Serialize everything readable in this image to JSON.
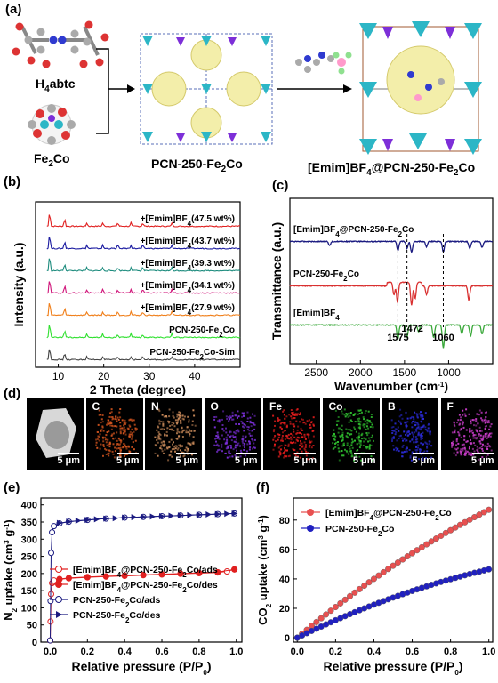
{
  "panels": {
    "a": {
      "label": "(a)",
      "linker": "H",
      "linker_sub": "4",
      "linker_rest": "abtc",
      "cluster": "Fe",
      "cluster_sub": "2",
      "cluster_rest": "Co",
      "mof": "PCN-250-Fe",
      "mof_sub": "2",
      "mof_rest": "Co",
      "composite": "[Emim]BF",
      "composite_sub": "4",
      "composite_rest": "@PCN-250-Fe",
      "composite_sub2": "2",
      "composite_rest2": "Co"
    },
    "b": {
      "label": "(b)"
    },
    "c": {
      "label": "(c)"
    },
    "d": {
      "label": "(d)",
      "tiles": [
        "",
        "C",
        "N",
        "O",
        "Fe",
        "Co",
        "B",
        "F"
      ],
      "scale": "5 μm",
      "colors": [
        "#888888",
        "#d2541e",
        "#c98a5a",
        "#7a2fd8",
        "#e51d1d",
        "#2fbf2f",
        "#2b2bd9",
        "#c83cc8"
      ]
    },
    "e": {
      "label": "(e)"
    },
    "f": {
      "label": "(f)"
    }
  },
  "chart_data": [
    {
      "id": "b",
      "type": "line",
      "xlabel": "2 Theta (degree)",
      "ylabel": "Intensity (a.u.)",
      "xticks": [
        "10",
        "20",
        "30",
        "40"
      ],
      "xlim": [
        5,
        50
      ],
      "series": [
        {
          "name": "+[Emim]BF4(47.5 wt%)",
          "color": "#e02020"
        },
        {
          "name": "+[Emim]BF4(43.7 wt%)",
          "color": "#1a1aa0"
        },
        {
          "name": "+[Emim]BF4(39.3 wt%)",
          "color": "#1e8c7e"
        },
        {
          "name": "+[Emim]BF4(34.1 wt%)",
          "color": "#d0157a"
        },
        {
          "name": "+[Emim]BF4(27.9 wt%)",
          "color": "#f07f1a"
        },
        {
          "name": "PCN-250-Fe2Co",
          "color": "#30e030"
        },
        {
          "name": "PCN-250-Fe2Co-Sim",
          "color": "#444444"
        }
      ],
      "labels": [
        {
          "pre": "+[Emim]BF",
          "sub": "4",
          "post": "(47.5 wt%)"
        },
        {
          "pre": "+[Emim]BF",
          "sub": "4",
          "post": "(43.7 wt%)"
        },
        {
          "pre": "+[Emim]BF",
          "sub": "4",
          "post": "(39.3 wt%)"
        },
        {
          "pre": "+[Emim]BF",
          "sub": "4",
          "post": "(34.1 wt%)"
        },
        {
          "pre": "+[Emim]BF",
          "sub": "4",
          "post": "(27.9 wt%)"
        },
        {
          "pre": "PCN-250-Fe",
          "sub": "2",
          "post": "Co"
        },
        {
          "pre": "PCN-250-Fe",
          "sub": "2",
          "post": "Co-Sim"
        }
      ],
      "peaks": [
        8.1,
        11.4,
        16.3,
        19.8,
        23.1,
        26.0,
        28.6,
        35.0
      ]
    },
    {
      "id": "c",
      "type": "line",
      "xlabel": "Wavenumber (cm",
      "xlabel_sup": "-1",
      "xlabel_end": ")",
      "ylabel": "Transmittance (a.u.)",
      "xticks": [
        "2500",
        "2000",
        "1500",
        "1000"
      ],
      "xlim": [
        2800,
        500
      ],
      "series": [
        {
          "name": "[Emim]BF4@PCN-250-Fe2Co",
          "color": "#1a1a80"
        },
        {
          "name": "PCN-250-Fe2Co",
          "color": "#d93030"
        },
        {
          "name": "[Emim]BF4",
          "color": "#3aa83a"
        }
      ],
      "labels": [
        {
          "pre": "[Emim]BF",
          "sub": "4",
          "post": "@PCN-250-Fe",
          "sub2": "2",
          "post2": "Co"
        },
        {
          "pre": "PCN-250-Fe",
          "sub": "2",
          "post": "Co"
        },
        {
          "pre": "[Emim]BF",
          "sub": "4",
          "post": ""
        }
      ],
      "markers": [
        "1575",
        "1472",
        "1060"
      ],
      "marker_x": [
        1575,
        1472,
        1060
      ]
    },
    {
      "id": "e",
      "type": "line",
      "xlabel": "Relative pressure (P/P",
      "xlabel_sub": "0",
      "xlabel_end": ")",
      "ylabel": "N",
      "ylabel_sub": "2",
      "ylabel_rest": " uptake (cm",
      "ylabel_sup": "3",
      "ylabel_mid": " g",
      "ylabel_sup2": "-1",
      "ylabel_end": ")",
      "xticks": [
        "0.0",
        "0.2",
        "0.4",
        "0.6",
        "0.8",
        "1.0"
      ],
      "xlim": [
        -0.05,
        1.03
      ],
      "yticks": [
        "0",
        "50",
        "100",
        "150",
        "200",
        "250",
        "300",
        "350",
        "400"
      ],
      "ylim": [
        0,
        420
      ],
      "legend": [
        {
          "pre": "[Emim]BF",
          "sub": "4",
          "post": "@PCN-250-Fe",
          "sub2": "2",
          "post2": "Co/ads"
        },
        {
          "pre": "[Emim]BF",
          "sub": "4",
          "post": "@PCN-250-Fe",
          "sub2": "2",
          "post2": "Co/des"
        },
        {
          "pre": "PCN-250-Fe",
          "sub": "2",
          "post": "Co/ads",
          "sub2": "",
          "post2": ""
        },
        {
          "pre": "PCN-250-Fe",
          "sub": "2",
          "post": "Co/des",
          "sub2": "",
          "post2": ""
        }
      ],
      "series": [
        {
          "name": "[Emim]BF4@PCN-250-Fe2Co/ads",
          "color": "#e02020",
          "marker": "circle-open",
          "x": [
            0.0,
            0.002,
            0.005,
            0.01,
            0.02,
            0.05,
            0.1,
            0.2,
            0.3,
            0.4,
            0.5,
            0.6,
            0.7,
            0.8,
            0.9,
            0.95,
            0.99
          ],
          "y": [
            5,
            60,
            140,
            172,
            180,
            183,
            186,
            189,
            191,
            193,
            195,
            197,
            199,
            201,
            203,
            206,
            212
          ]
        },
        {
          "name": "[Emim]BF4@PCN-250-Fe2Co/des",
          "color": "#e02020",
          "marker": "circle-filled",
          "x": [
            0.99,
            0.9,
            0.8,
            0.7,
            0.6,
            0.5,
            0.4,
            0.3,
            0.2,
            0.1,
            0.05
          ],
          "y": [
            212,
            204,
            202,
            200,
            198,
            196,
            194,
            192,
            190,
            187,
            184
          ]
        },
        {
          "name": "PCN-250-Fe2Co/ads",
          "color": "#1a1a80",
          "marker": "circle-open",
          "x": [
            0.0,
            0.002,
            0.005,
            0.01,
            0.02,
            0.05,
            0.1,
            0.2,
            0.3,
            0.4,
            0.5,
            0.6,
            0.7,
            0.8,
            0.9,
            0.99
          ],
          "y": [
            5,
            120,
            260,
            320,
            338,
            346,
            351,
            356,
            360,
            363,
            365,
            367,
            369,
            371,
            373,
            375
          ]
        },
        {
          "name": "PCN-250-Fe2Co/des",
          "color": "#1a1a80",
          "marker": "triangle",
          "x": [
            0.99,
            0.95,
            0.9,
            0.85,
            0.8,
            0.75,
            0.7,
            0.65,
            0.6,
            0.55,
            0.5,
            0.45,
            0.4,
            0.35,
            0.3,
            0.25,
            0.2,
            0.15,
            0.1,
            0.05
          ],
          "y": [
            375,
            374,
            373,
            372,
            371,
            370,
            369,
            368,
            367,
            366,
            365,
            364,
            363,
            361,
            360,
            358,
            356,
            354,
            351,
            347
          ]
        }
      ]
    },
    {
      "id": "f",
      "type": "line",
      "xlabel": "Relative pressure (P/P",
      "xlabel_sub": "0",
      "xlabel_end": ")",
      "ylabel": "CO",
      "ylabel_sub": "2",
      "ylabel_rest": " uptake (cm",
      "ylabel_sup": "3",
      "ylabel_mid": " g",
      "ylabel_sup2": "-1",
      "ylabel_end": ")",
      "xticks": [
        "0.0",
        "0.2",
        "0.4",
        "0.6",
        "0.8",
        "1.0"
      ],
      "xlim": [
        -0.02,
        1.02
      ],
      "yticks": [
        "0",
        "20",
        "40",
        "60",
        "80"
      ],
      "ylim": [
        -3,
        95
      ],
      "legend": [
        {
          "pre": "[Emim]BF",
          "sub": "4",
          "post": "@PCN-250-Fe",
          "sub2": "2",
          "post2": "Co"
        },
        {
          "pre": "PCN-250-Fe",
          "sub": "2",
          "post": "Co",
          "sub2": "",
          "post2": ""
        }
      ],
      "series": [
        {
          "name": "[Emim]BF4@PCN-250-Fe2Co",
          "color": "#e85050",
          "end": 87,
          "curve": 0.25
        },
        {
          "name": "PCN-250-Fe2Co",
          "color": "#2020c0",
          "end": 46.5,
          "curve": 0.35
        }
      ]
    }
  ]
}
